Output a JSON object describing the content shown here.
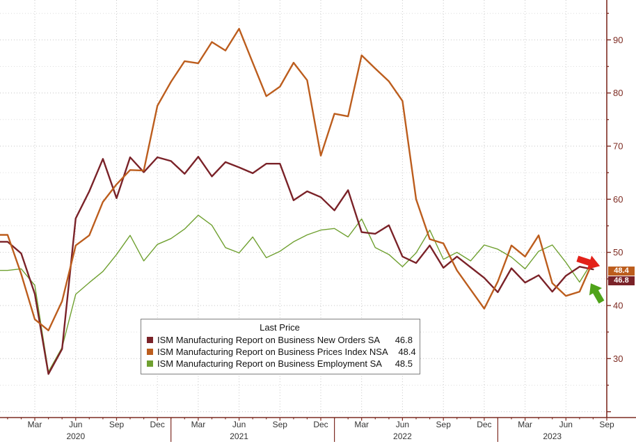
{
  "colors": {
    "axis": "#7d2b22",
    "tick_text": "#7d2b22",
    "month_text": "#333333",
    "grid_major": "#c6c6c6",
    "grid_minor": "#dedede",
    "background": "#ffffff"
  },
  "chart_data": {
    "type": "line",
    "title": "",
    "xlabel": "",
    "ylabel": "",
    "grid": "dotted",
    "legend_position": "bottom-center-box",
    "ylim": [
      19,
      96.5
    ],
    "y_ticks": [
      30,
      40,
      50,
      60,
      70,
      80,
      90
    ],
    "x_range": [
      "2020-01",
      "2023-09"
    ],
    "x_months": [
      "2020-01",
      "2020-02",
      "2020-03",
      "2020-04",
      "2020-05",
      "2020-06",
      "2020-07",
      "2020-08",
      "2020-09",
      "2020-10",
      "2020-11",
      "2020-12",
      "2021-01",
      "2021-02",
      "2021-03",
      "2021-04",
      "2021-05",
      "2021-06",
      "2021-07",
      "2021-08",
      "2021-09",
      "2021-10",
      "2021-11",
      "2021-12",
      "2022-01",
      "2022-02",
      "2022-03",
      "2022-04",
      "2022-05",
      "2022-06",
      "2022-07",
      "2022-08",
      "2022-09",
      "2022-10",
      "2022-11",
      "2022-12",
      "2023-01",
      "2023-02",
      "2023-03",
      "2023-04",
      "2023-05",
      "2023-06",
      "2023-07",
      "2023-08"
    ],
    "x_ticks": [
      {
        "m": 2,
        "label": "Mar"
      },
      {
        "m": 5,
        "label": "Jun"
      },
      {
        "m": 8,
        "label": "Sep"
      },
      {
        "m": 11,
        "label": "Dec"
      },
      {
        "m": 14,
        "label": "Mar"
      },
      {
        "m": 17,
        "label": "Jun"
      },
      {
        "m": 20,
        "label": "Sep"
      },
      {
        "m": 23,
        "label": "Dec"
      },
      {
        "m": 26,
        "label": "Mar"
      },
      {
        "m": 29,
        "label": "Jun"
      },
      {
        "m": 32,
        "label": "Sep"
      },
      {
        "m": 35,
        "label": "Dec"
      },
      {
        "m": 38,
        "label": "Mar"
      },
      {
        "m": 41,
        "label": "Jun"
      },
      {
        "m": 44,
        "label": "Sep"
      }
    ],
    "year_labels": [
      {
        "m": 5,
        "label": "2020"
      },
      {
        "m": 17,
        "label": "2021"
      },
      {
        "m": 29,
        "label": "2022"
      },
      {
        "m": 40,
        "label": "2023"
      }
    ],
    "year_separators": [
      12,
      24,
      36
    ],
    "series": [
      {
        "name": "ISM Manufacturing Report on Business New Orders SA",
        "color": "#7a2228",
        "stroke_width": 2.4,
        "last": 46.8,
        "values": [
          52.0,
          49.8,
          42.2,
          27.1,
          31.8,
          56.4,
          61.5,
          67.6,
          60.2,
          67.9,
          65.1,
          67.9,
          67.2,
          64.8,
          68.0,
          64.3,
          67.0,
          66.0,
          64.9,
          66.7,
          66.7,
          59.8,
          61.5,
          60.4,
          57.9,
          61.7,
          53.8,
          53.5,
          55.1,
          49.2,
          48.0,
          51.3,
          47.1,
          49.2,
          47.2,
          45.2,
          42.5,
          47.0,
          44.3,
          45.7,
          42.6,
          45.6,
          47.3,
          46.8
        ]
      },
      {
        "name": "ISM Manufacturing Report on Business Prices Index NSA",
        "color": "#bc5d1d",
        "stroke_width": 2.4,
        "last": 48.4,
        "values": [
          53.3,
          45.9,
          37.4,
          35.3,
          40.8,
          51.3,
          53.2,
          59.5,
          62.8,
          65.5,
          65.4,
          77.6,
          82.1,
          86.0,
          85.6,
          89.6,
          88.0,
          92.1,
          85.7,
          79.4,
          81.2,
          85.7,
          82.4,
          68.2,
          76.1,
          75.6,
          87.1,
          84.6,
          82.2,
          78.5,
          60.0,
          52.5,
          51.7,
          46.6,
          43.0,
          39.4,
          44.5,
          51.3,
          49.2,
          53.2,
          44.2,
          41.8,
          42.6,
          48.4
        ]
      },
      {
        "name": "ISM Manufacturing Report on Business Employment SA",
        "color": "#6fa030",
        "stroke_width": 1.4,
        "last": 48.5,
        "values": [
          46.6,
          46.9,
          43.8,
          27.5,
          32.1,
          42.1,
          44.3,
          46.4,
          49.6,
          53.2,
          48.4,
          51.5,
          52.6,
          54.4,
          57.0,
          55.1,
          50.9,
          49.9,
          52.9,
          49.0,
          50.2,
          52.0,
          53.3,
          54.2,
          54.5,
          52.9,
          56.3,
          50.9,
          49.6,
          47.3,
          49.9,
          54.2,
          48.7,
          50.0,
          48.4,
          51.4,
          50.6,
          49.1,
          46.9,
          50.2,
          51.4,
          48.1,
          44.4,
          48.5
        ]
      }
    ]
  },
  "legend": {
    "title": "Last Price",
    "items": [
      {
        "label": "ISM Manufacturing Report on Business New Orders SA",
        "value": "46.8",
        "color": "#7a2228"
      },
      {
        "label": "ISM Manufacturing Report on Business Prices Index NSA",
        "value": "48.4",
        "color": "#bc5d1d"
      },
      {
        "label": "ISM Manufacturing Report on Business Employment SA",
        "value": "48.5",
        "color": "#6fa030"
      }
    ]
  },
  "price_tags": [
    {
      "value": "48.4",
      "bg": "#bc5d1d"
    },
    {
      "value": "46.8",
      "bg": "#7a2228"
    }
  ],
  "annotations": [
    {
      "type": "arrow",
      "direction": "down-right",
      "color": "#e32119"
    },
    {
      "type": "arrow",
      "direction": "up-left",
      "color": "#4fa31a"
    }
  ]
}
